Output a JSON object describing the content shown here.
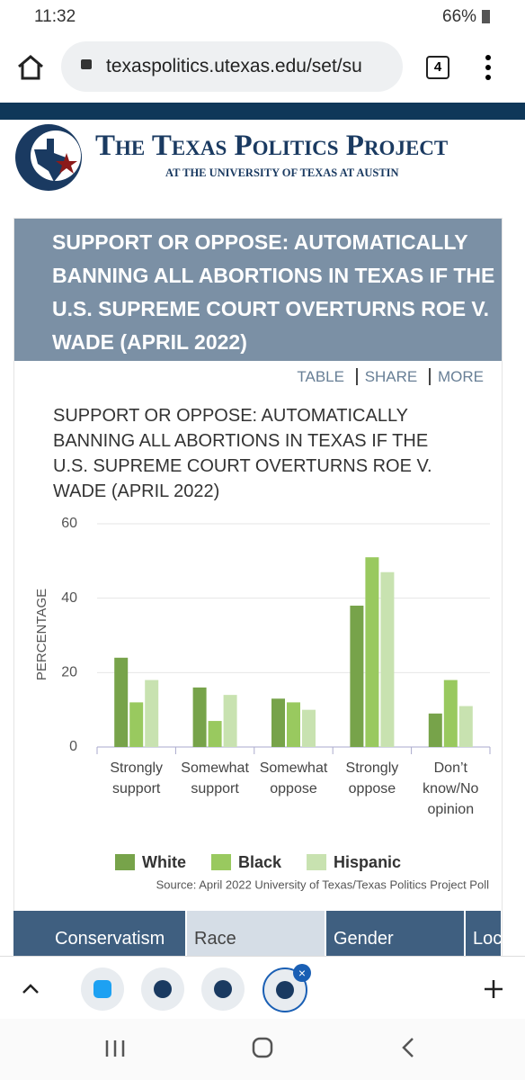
{
  "status_bar": {
    "time": "11:32",
    "battery": "66%"
  },
  "browser": {
    "url": "texaspolitics.utexas.edu/set/su",
    "tab_count": 4
  },
  "site_header": {
    "title": "The Texas Politics Project",
    "subtitle": "AT THE UNIVERSITY OF TEXAS AT AUSTIN"
  },
  "card": {
    "title": "SUPPORT OR OPPOSE: AUTOMATICALLY BANNING ALL ABORTIONS IN TEXAS IF THE U.S. SUPREME COURT OVERTURNS ROE V. WADE (APRIL 2022)",
    "actions": [
      "TABLE",
      "SHARE",
      "MORE"
    ]
  },
  "chart_data": {
    "type": "bar",
    "title": "SUPPORT OR OPPOSE: AUTOMATICALLY BANNING ALL ABORTIONS IN TEXAS IF THE U.S. SUPREME COURT OVERTURNS ROE V. WADE (APRIL 2022)",
    "y_label": "PERCENTAGE",
    "categories": [
      "Strongly support",
      "Somewhat support",
      "Somewhat oppose",
      "Strongly oppose",
      "Don’t know/No opinion"
    ],
    "series": [
      {
        "name": "White",
        "color": "#77a34a",
        "values": [
          24,
          16,
          13,
          38,
          9
        ]
      },
      {
        "name": "Black",
        "color": "#99c95f",
        "values": [
          12,
          7,
          12,
          51,
          18
        ]
      },
      {
        "name": "Hispanic",
        "color": "#c8e2b0",
        "values": [
          18,
          14,
          10,
          47,
          11
        ]
      }
    ],
    "ylim": [
      0,
      60
    ],
    "yticks": [
      0,
      20,
      40,
      60
    ],
    "grid": true,
    "source": "Source: April 2022 University of Texas/Texas Politics Project Poll"
  },
  "tabs": [
    "Conservatism",
    "Race",
    "Gender",
    "Loc"
  ]
}
